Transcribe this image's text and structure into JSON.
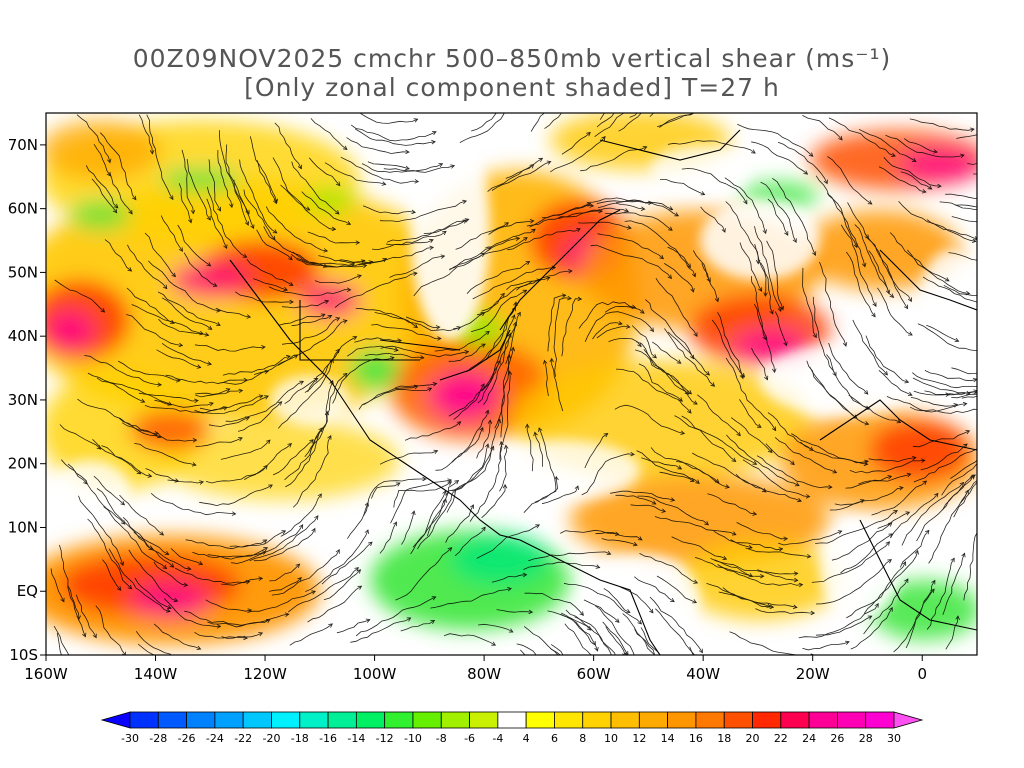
{
  "title": {
    "line1": "00Z09NOV2025 cmchr 500–850mb vertical shear (ms⁻¹)",
    "line2": "[Only zonal component shaded] T=27 h"
  },
  "map": {
    "lon_range": [
      -160,
      10
    ],
    "lat_range": [
      -10,
      75
    ],
    "lon_ticks": [
      {
        "lon": -160,
        "label": "160W"
      },
      {
        "lon": -140,
        "label": "140W"
      },
      {
        "lon": -120,
        "label": "120W"
      },
      {
        "lon": -100,
        "label": "100W"
      },
      {
        "lon": -80,
        "label": "80W"
      },
      {
        "lon": -60,
        "label": "60W"
      },
      {
        "lon": -40,
        "label": "40W"
      },
      {
        "lon": -20,
        "label": "20W"
      },
      {
        "lon": 0,
        "label": "0"
      }
    ],
    "lat_ticks": [
      {
        "lat": 70,
        "label": "70N"
      },
      {
        "lat": 60,
        "label": "60N"
      },
      {
        "lat": 50,
        "label": "50N"
      },
      {
        "lat": 40,
        "label": "40N"
      },
      {
        "lat": 30,
        "label": "30N"
      },
      {
        "lat": 20,
        "label": "20N"
      },
      {
        "lat": 10,
        "label": "10N"
      },
      {
        "lat": 0,
        "label": "EQ"
      },
      {
        "lat": -10,
        "label": "10S"
      }
    ]
  },
  "colorbar": {
    "labels": [
      "-30",
      "-28",
      "-26",
      "-24",
      "-22",
      "-20",
      "-18",
      "-16",
      "-14",
      "-12",
      "-10",
      "-8",
      "-6",
      "-4",
      "4",
      "6",
      "8",
      "10",
      "12",
      "14",
      "16",
      "18",
      "20",
      "22",
      "24",
      "26",
      "28",
      "30"
    ],
    "colors": [
      "#0a00ff",
      "#0032ff",
      "#005aff",
      "#0082ff",
      "#00a0ff",
      "#00c8ff",
      "#00f0ff",
      "#00f0c8",
      "#00f096",
      "#00f064",
      "#30f030",
      "#64f000",
      "#a0f000",
      "#c8f000",
      "#ffffff",
      "#ffff00",
      "#ffe600",
      "#ffd200",
      "#ffbe00",
      "#ffaa00",
      "#ff9600",
      "#ff7800",
      "#ff5000",
      "#ff2800",
      "#ff0050",
      "#ff0096",
      "#ff00b4",
      "#ff00d2",
      "#ff50f0"
    ]
  }
}
